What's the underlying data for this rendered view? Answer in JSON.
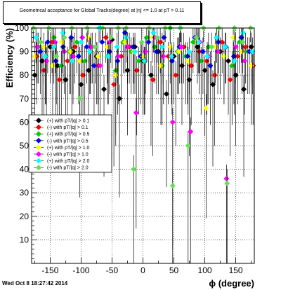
{
  "timestamp": "Wed Oct  8 18:27:42 2014",
  "chart_data": {
    "type": "scatter",
    "title": "Geometrical acceptance for Global Tracks(degree) at |η| <= 1.0 at pT > 0.11",
    "xlabel": "ϕ (degree)",
    "ylabel": "Efficiency (%)",
    "xlim": [
      -180,
      180
    ],
    "ylim": [
      0,
      100
    ],
    "x_ticks": [
      -150,
      -100,
      -50,
      0,
      50,
      100,
      150
    ],
    "y_ticks": [
      10,
      20,
      30,
      40,
      50,
      60,
      70,
      80,
      90,
      100
    ],
    "grid": true,
    "legend_position": "left-middle",
    "series": [
      {
        "name": "(+) with pT/|q| > 0.1",
        "color": "#000000",
        "marker": "diamond",
        "x": [
          -175,
          -163,
          -150,
          -138,
          -125,
          -113,
          -100,
          -88,
          -75,
          -63,
          -50,
          -38,
          -25,
          -13,
          0,
          13,
          25,
          38,
          50,
          63,
          75,
          88,
          100,
          113,
          125,
          138,
          150,
          163,
          175
        ],
        "y": [
          80,
          86,
          92,
          84,
          78,
          90,
          76,
          82,
          88,
          74,
          95,
          70,
          82,
          92,
          86,
          80,
          90,
          72,
          88,
          84,
          78,
          92,
          82,
          76,
          90,
          86,
          80,
          74,
          92
        ]
      },
      {
        "name": "(-) with pT/|q| > 0.1",
        "color": "#ff0000",
        "marker": "diamond",
        "x": [
          -172,
          -160,
          -147,
          -135,
          -122,
          -110,
          -97,
          -85,
          -72,
          -60,
          -47,
          -35,
          -22,
          -10,
          3,
          16,
          28,
          41,
          53,
          66,
          78,
          91,
          103,
          116,
          128,
          141,
          153,
          166,
          178
        ],
        "y": [
          88,
          82,
          94,
          78,
          86,
          92,
          80,
          90,
          84,
          96,
          76,
          88,
          92,
          82,
          86,
          78,
          94,
          88,
          80,
          92,
          84,
          90,
          86,
          80,
          94,
          78,
          88,
          92,
          84
        ]
      },
      {
        "name": "(+) with pT/|q| > 0.5",
        "color": "#00cc00",
        "marker": "diamond",
        "x": [
          -169,
          -157,
          -144,
          -132,
          -119,
          -107,
          -94,
          -82,
          -69,
          -57,
          -44,
          -32,
          -19,
          -7,
          6,
          19,
          31,
          44,
          56,
          69,
          81,
          94,
          106,
          119,
          131,
          144,
          156,
          169
        ],
        "y": [
          92,
          88,
          96,
          84,
          90,
          94,
          86,
          92,
          100,
          88,
          82,
          94,
          90,
          86,
          96,
          92,
          84,
          100,
          90,
          88,
          94,
          86,
          92,
          96,
          88,
          84,
          94,
          90
        ]
      },
      {
        "name": "(-) with pT/|q| > 0.5",
        "color": "#0000ff",
        "marker": "diamond",
        "x": [
          -166,
          -154,
          -141,
          -129,
          -116,
          -104,
          -91,
          -79,
          -66,
          -54,
          -41,
          -29,
          -16,
          -4,
          9,
          22,
          34,
          47,
          59,
          72,
          84,
          97,
          109,
          122,
          134,
          147,
          159,
          172
        ],
        "y": [
          90,
          94,
          86,
          92,
          96,
          88,
          92,
          84,
          94,
          90,
          86,
          98,
          92,
          88,
          94,
          90,
          96,
          86,
          92,
          88,
          96,
          90,
          84,
          94,
          92,
          88,
          96,
          90
        ]
      },
      {
        "name": "(+) with pT/|q| > 1.0",
        "color": "#ffff00",
        "marker": "diamond",
        "x": [
          -175,
          -160,
          -146,
          -131,
          -117,
          -102,
          -88,
          -73,
          -58,
          -44,
          -29,
          -15,
          0,
          15,
          29,
          44,
          58,
          73,
          88,
          102,
          117,
          131,
          146,
          160,
          175
        ],
        "y": [
          88,
          92,
          84,
          94,
          90,
          86,
          96,
          88,
          92,
          80,
          94,
          90,
          88,
          96,
          84,
          92,
          90,
          86,
          94,
          66,
          92,
          88,
          96,
          90,
          84
        ]
      },
      {
        "name": "(-) with pT/|q| > 1.0",
        "color": "#ff00ff",
        "marker": "diamond",
        "x": [
          -171,
          -156,
          -142,
          -127,
          -113,
          -98,
          -84,
          -69,
          -54,
          -40,
          -25,
          -11,
          4,
          19,
          33,
          48,
          62,
          77,
          92,
          106,
          121,
          135,
          150,
          164
        ],
        "y": [
          92,
          86,
          94,
          90,
          88,
          96,
          92,
          84,
          94,
          88,
          92,
          64,
          90,
          96,
          88,
          60,
          92,
          56,
          94,
          88,
          90,
          36,
          92,
          86
        ]
      },
      {
        "name": "(+) with pT/|q| > 2.0",
        "color": "#00ffff",
        "marker": "diamond",
        "x": [
          -173,
          -158,
          -144,
          -129,
          -115,
          -100,
          -86,
          -71,
          -56,
          -42,
          -27,
          -13,
          2,
          17,
          31,
          46,
          60,
          75,
          90,
          104,
          119,
          133,
          148,
          162,
          177
        ],
        "y": [
          96,
          88,
          92,
          98,
          86,
          94,
          90,
          100,
          88,
          92,
          96,
          90,
          86,
          98,
          92,
          88,
          100,
          90,
          94,
          88,
          96,
          92,
          86,
          98,
          90
        ]
      },
      {
        "name": "(-) with pT/|q| > 2.0",
        "color": "#66dd55",
        "marker": "diamond",
        "x": [
          -177,
          -165,
          -152,
          -140,
          -127,
          -115,
          -102,
          -90,
          -77,
          -65,
          -52,
          -40,
          -27,
          -15,
          -2,
          10,
          23,
          36,
          48,
          61,
          73,
          86,
          98,
          111,
          123,
          136,
          148,
          161,
          174
        ],
        "y": [
          100,
          94,
          100,
          88,
          96,
          100,
          70,
          100,
          92,
          100,
          96,
          100,
          100,
          40,
          94,
          100,
          96,
          100,
          33,
          100,
          50,
          96,
          100,
          92,
          100,
          34,
          100,
          94,
          100
        ]
      }
    ]
  }
}
